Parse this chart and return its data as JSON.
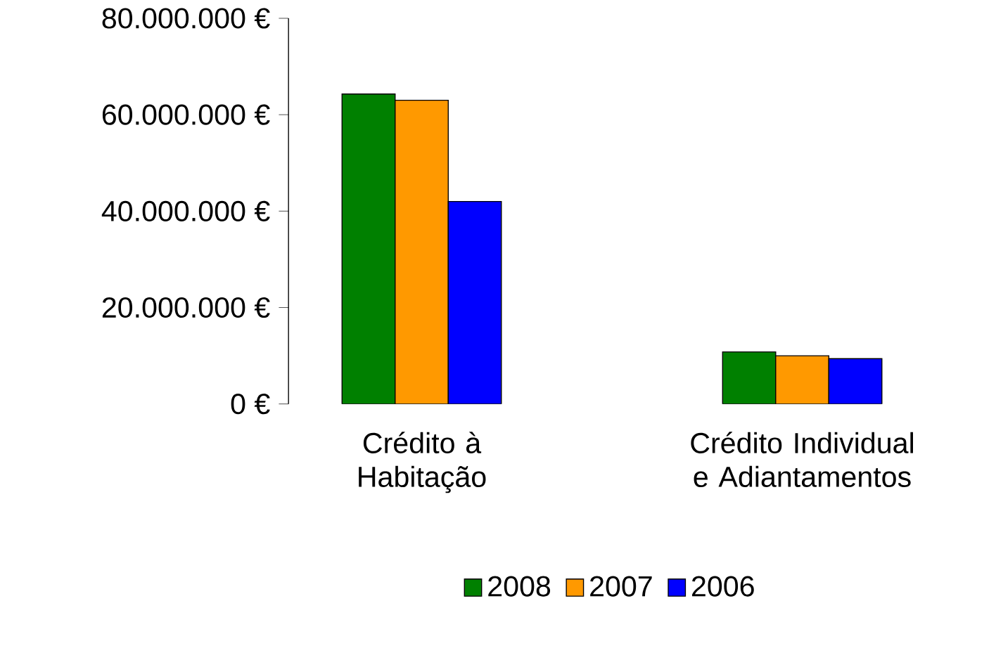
{
  "chart_data": {
    "type": "bar",
    "categories": [
      "Crédito à Habitação",
      "Crédito Individual e Adiantamentos"
    ],
    "series": [
      {
        "name": "2008",
        "color": "#008000",
        "values": [
          64300000,
          10800000
        ]
      },
      {
        "name": "2007",
        "color": "#ff9900",
        "values": [
          63000000,
          10000000
        ]
      },
      {
        "name": "2006",
        "color": "#0000ff",
        "values": [
          42000000,
          9400000
        ]
      }
    ],
    "ylim": [
      0,
      80000000
    ],
    "yticks": [
      {
        "value": 0,
        "label": "0 €"
      },
      {
        "value": 20000000,
        "label": "20.000.000 €"
      },
      {
        "value": 40000000,
        "label": "40.000.000 €"
      },
      {
        "value": 60000000,
        "label": "60.000.000 €"
      },
      {
        "value": 80000000,
        "label": "80.000.000 €"
      }
    ],
    "grid": false,
    "legend": "bottom"
  }
}
